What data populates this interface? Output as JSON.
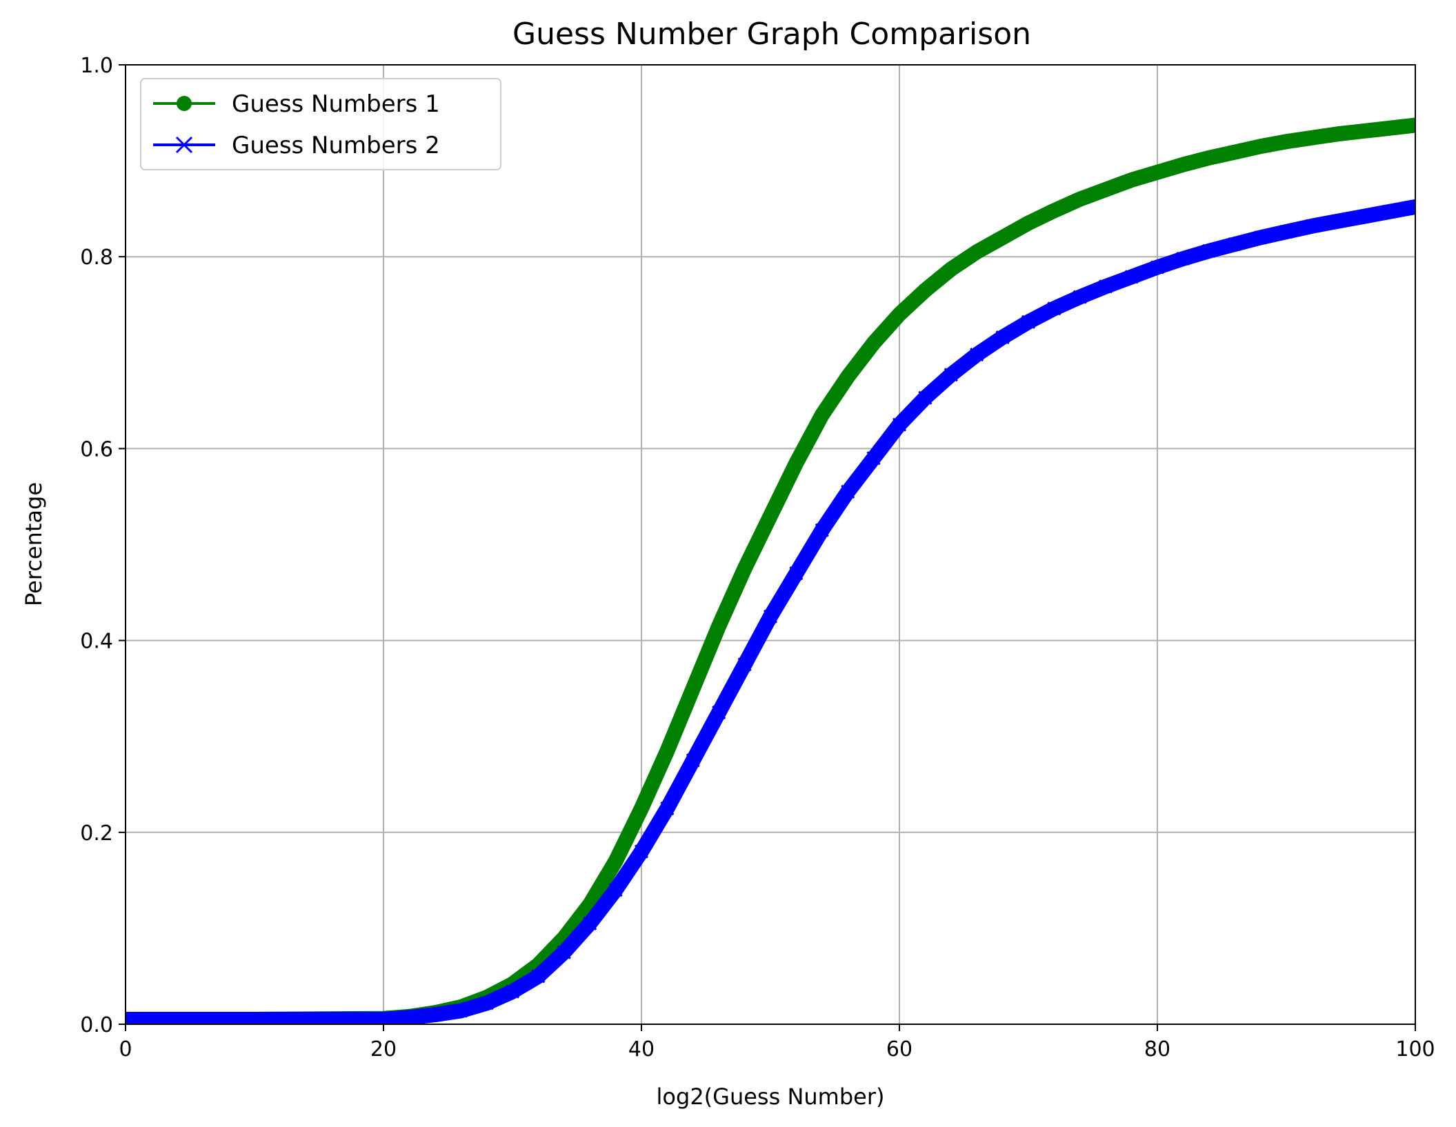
{
  "chart_data": {
    "type": "line",
    "title": "Guess Number Graph Comparison",
    "xlabel": "log2(Guess Number)",
    "ylabel": "Percentage",
    "xlim": [
      0,
      100
    ],
    "ylim": [
      0,
      1
    ],
    "xticks": [
      0,
      20,
      40,
      60,
      80,
      100
    ],
    "xtick_labels": [
      "0",
      "20",
      "40",
      "60",
      "80",
      "100"
    ],
    "yticks": [
      0,
      0.2,
      0.4,
      0.6,
      0.8,
      1.0
    ],
    "ytick_labels": [
      "0.0",
      "0.2",
      "0.4",
      "0.6",
      "0.8",
      "1.0"
    ],
    "grid": true,
    "legend_position": "top-left",
    "series": [
      {
        "name": "Guess Numbers 1",
        "color": "#008000",
        "marker": "circle",
        "x": [
          0,
          10,
          20,
          22,
          24,
          26,
          28,
          30,
          32,
          34,
          36,
          38,
          40,
          42,
          44,
          46,
          48,
          50,
          52,
          54,
          56,
          58,
          60,
          62,
          64,
          66,
          68,
          70,
          72,
          74,
          76,
          78,
          80,
          82,
          84,
          86,
          88,
          90,
          92,
          94,
          96,
          98,
          100
        ],
        "y": [
          0.005,
          0.005,
          0.006,
          0.008,
          0.012,
          0.018,
          0.028,
          0.042,
          0.062,
          0.09,
          0.125,
          0.17,
          0.225,
          0.285,
          0.35,
          0.415,
          0.475,
          0.53,
          0.585,
          0.635,
          0.675,
          0.71,
          0.74,
          0.765,
          0.787,
          0.805,
          0.82,
          0.835,
          0.848,
          0.86,
          0.87,
          0.88,
          0.888,
          0.896,
          0.903,
          0.909,
          0.915,
          0.92,
          0.924,
          0.928,
          0.931,
          0.934,
          0.937
        ]
      },
      {
        "name": "Guess Numbers 2",
        "color": "#0000ff",
        "marker": "x",
        "x": [
          0,
          10,
          20,
          22,
          24,
          26,
          28,
          30,
          32,
          34,
          36,
          38,
          40,
          42,
          44,
          46,
          48,
          50,
          52,
          54,
          56,
          58,
          60,
          62,
          64,
          66,
          68,
          70,
          72,
          74,
          76,
          78,
          80,
          82,
          84,
          86,
          88,
          90,
          92,
          94,
          96,
          98,
          100
        ],
        "y": [
          0.005,
          0.005,
          0.005,
          0.007,
          0.01,
          0.014,
          0.022,
          0.034,
          0.05,
          0.075,
          0.105,
          0.14,
          0.18,
          0.225,
          0.275,
          0.325,
          0.375,
          0.425,
          0.47,
          0.515,
          0.555,
          0.59,
          0.625,
          0.653,
          0.677,
          0.698,
          0.716,
          0.732,
          0.746,
          0.758,
          0.769,
          0.779,
          0.789,
          0.798,
          0.806,
          0.813,
          0.82,
          0.826,
          0.832,
          0.837,
          0.842,
          0.847,
          0.852
        ]
      }
    ]
  }
}
